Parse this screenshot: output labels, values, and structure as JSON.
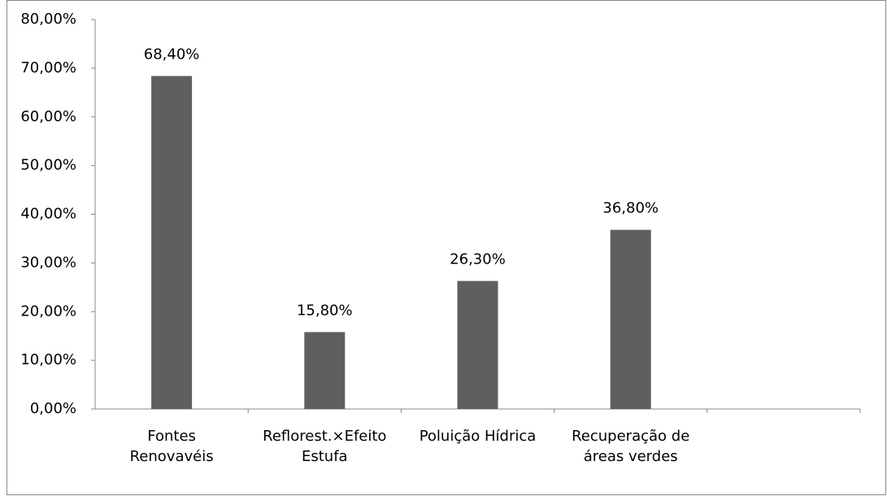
{
  "chart_data": {
    "type": "bar",
    "categories": [
      "Fontes\nRenovavéis",
      "Reflorest.×Efeito\nEstufa",
      "Poluição Hídrica",
      "Recuperação de\náreas verdes",
      null
    ],
    "values": [
      68.4,
      15.8,
      26.3,
      36.8,
      null
    ],
    "value_labels": [
      "68,40%",
      "15,80%",
      "26,30%",
      "36,80%",
      null
    ],
    "color": "#5f5f5f",
    "ylim": [
      0,
      80
    ],
    "yticks": [
      {
        "value": 0,
        "label": "0,00%"
      },
      {
        "value": 10,
        "label": "10,00%"
      },
      {
        "value": 20,
        "label": "20,00%"
      },
      {
        "value": 30,
        "label": "30,00%"
      },
      {
        "value": 40,
        "label": "40,00%"
      },
      {
        "value": 50,
        "label": "50,00%"
      },
      {
        "value": 60,
        "label": "60,00%"
      },
      {
        "value": 70,
        "label": "70,00%"
      },
      {
        "value": 80,
        "label": "80,00%"
      }
    ],
    "grid": false
  }
}
